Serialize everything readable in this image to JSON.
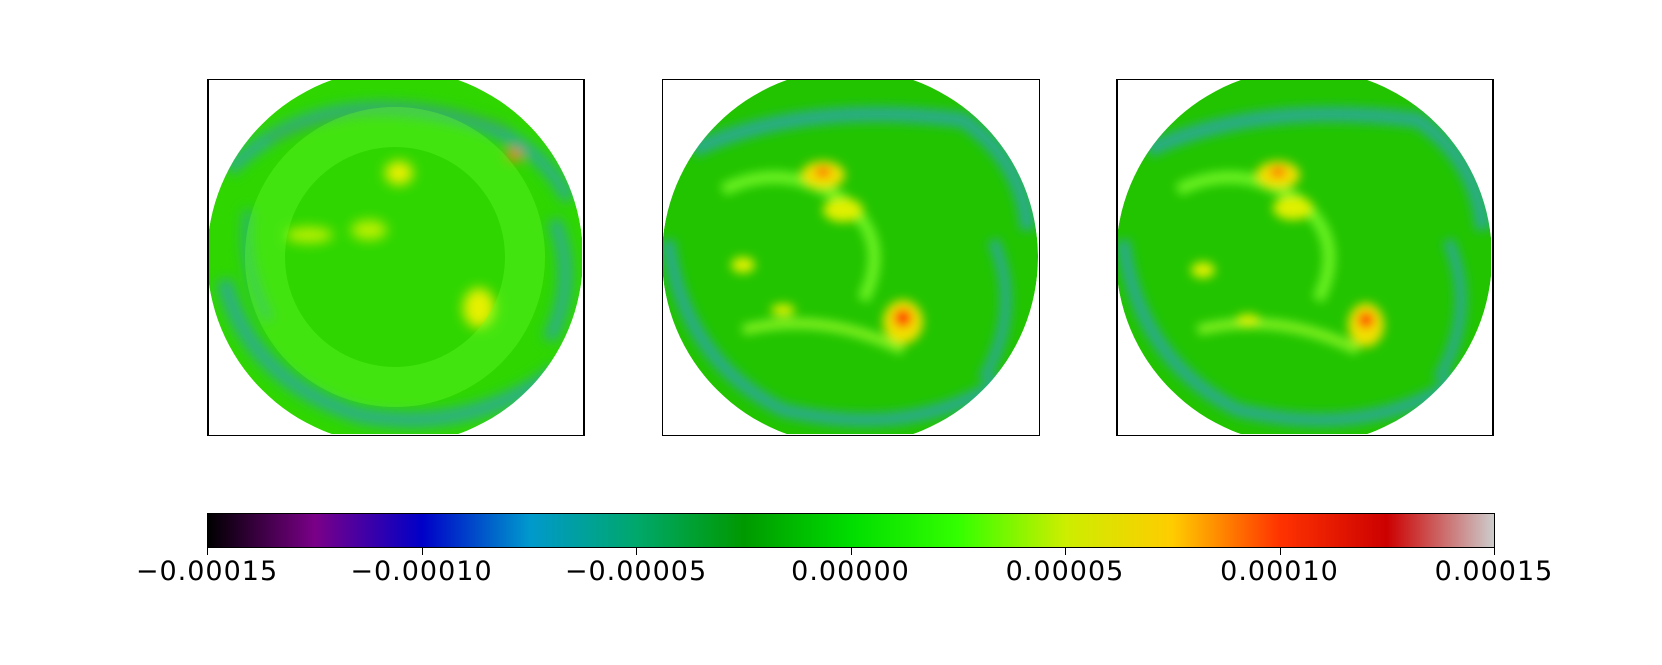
{
  "figure": {
    "panels": [
      {
        "name": "field-snapshot-1"
      },
      {
        "name": "field-snapshot-2"
      },
      {
        "name": "field-snapshot-3"
      }
    ]
  },
  "colorbar": {
    "colormap": "nipy_spectral",
    "range": [
      -0.00015,
      0.00015
    ],
    "stops": [
      "#000000",
      "#7a0088",
      "#0000c8",
      "#0099cc",
      "#00a86b",
      "#009900",
      "#00dd00",
      "#33ff00",
      "#ccee00",
      "#ffcc00",
      "#ff3300",
      "#cc0000",
      "#cccccc"
    ],
    "ticks": [
      "−0.00015",
      "−0.00010",
      "−0.00005",
      "0.00000",
      "0.00005",
      "0.00010",
      "0.00015"
    ]
  },
  "chart_data": {
    "type": "heatmap",
    "panel_count": 3,
    "colorbar_min": -0.00015,
    "colorbar_max": 0.00015,
    "colorbar_ticks": [
      -0.00015,
      -0.0001,
      -5e-05,
      0,
      5e-05,
      0.0001,
      0.00015
    ],
    "title": "",
    "xlabel": "",
    "ylabel": ""
  }
}
